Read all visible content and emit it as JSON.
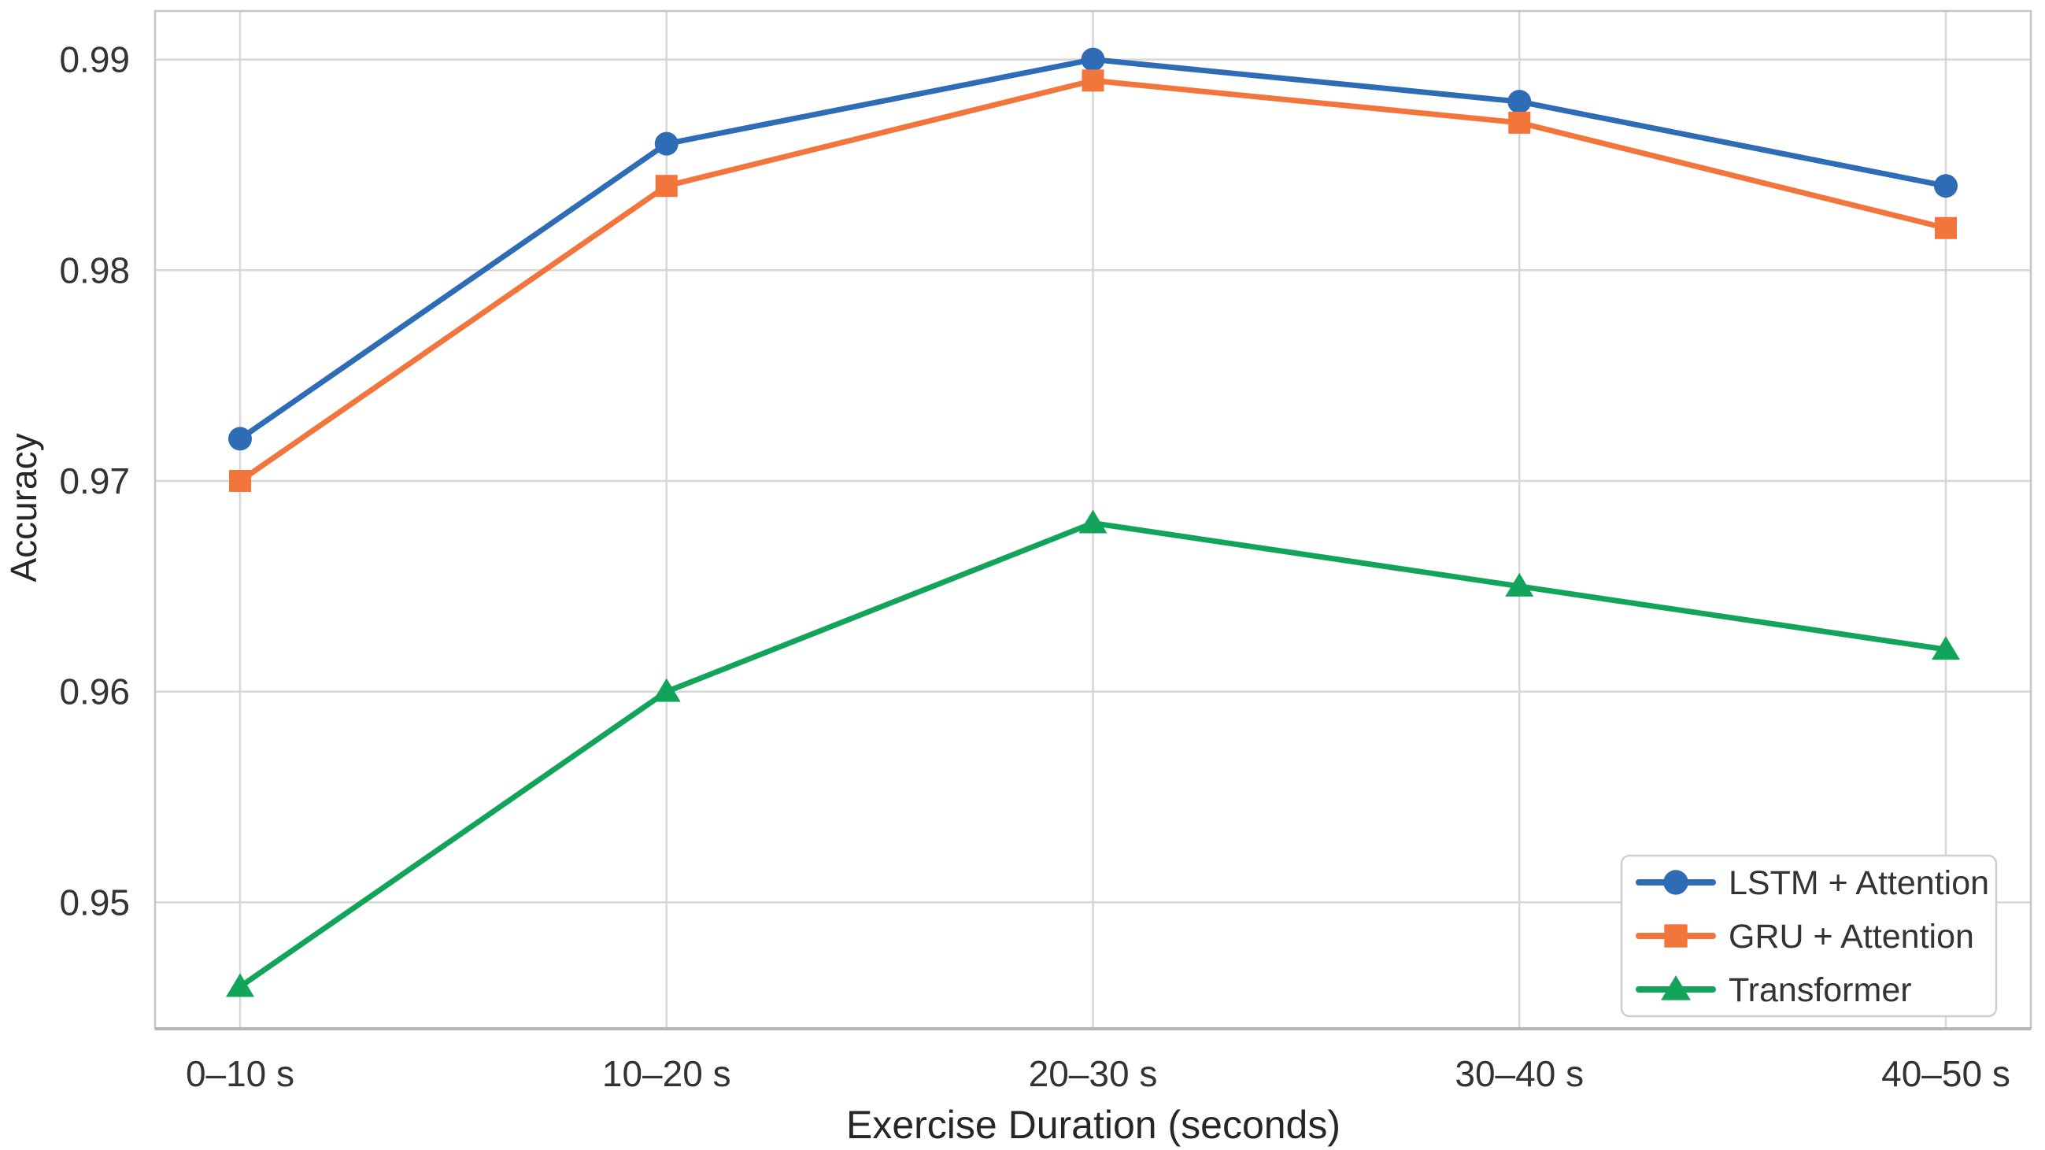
{
  "chart_data": {
    "type": "line",
    "title": "",
    "xlabel": "Exercise Duration (seconds)",
    "ylabel": "Accuracy",
    "categories": [
      "0–10 s",
      "10–20 s",
      "20–30 s",
      "30–40 s",
      "40–50 s"
    ],
    "series": [
      {
        "name": "LSTM + Attention",
        "marker": "circle",
        "color": "#2e6cb5",
        "values": [
          0.972,
          0.986,
          0.99,
          0.988,
          0.984
        ]
      },
      {
        "name": "GRU + Attention",
        "marker": "square",
        "color": "#f2753c",
        "values": [
          0.97,
          0.984,
          0.989,
          0.987,
          0.982
        ]
      },
      {
        "name": "Transformer",
        "marker": "triangle",
        "color": "#13a45b",
        "values": [
          0.946,
          0.96,
          0.968,
          0.965,
          0.962
        ]
      }
    ],
    "yticks": [
      0.95,
      0.96,
      0.97,
      0.98,
      0.99
    ],
    "ytick_format_decimals": 2,
    "ylim": [
      0.944,
      0.9923
    ],
    "grid": true,
    "legend_position": "lower right"
  },
  "theme": {
    "background": "#ffffff",
    "grid_color": "#d7d7d7",
    "spine_color": "#c6c6c6",
    "bottom_spine_color": "#b5b5b5",
    "tick_text_color": "#333333",
    "label_text_color": "#262626",
    "legend_border_color": "#cfcfcf",
    "legend_background": "#ffffff"
  }
}
